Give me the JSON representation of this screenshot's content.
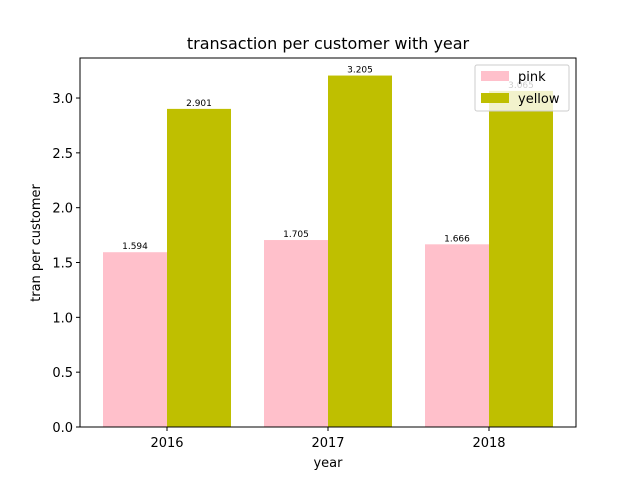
{
  "chart_data": {
    "type": "bar",
    "title": "transaction per customer with year",
    "xlabel": "year",
    "ylabel": "tran per customer",
    "categories": [
      "2016",
      "2017",
      "2018"
    ],
    "series": [
      {
        "name": "pink",
        "values": [
          1.594,
          1.705,
          1.666
        ],
        "color": "#ffc0cb",
        "labels": [
          "1.594",
          "1.705",
          "1.666"
        ]
      },
      {
        "name": "yellow",
        "values": [
          2.901,
          3.205,
          3.065
        ],
        "color": "#bfbf00",
        "labels": [
          "2.901",
          "3.205",
          "3.065"
        ]
      }
    ],
    "ylim": [
      0,
      3.365
    ],
    "yticks": [
      0.0,
      0.5,
      1.0,
      1.5,
      2.0,
      2.5,
      3.0
    ],
    "ytick_labels": [
      "0.0",
      "0.5",
      "1.0",
      "1.5",
      "2.0",
      "2.5",
      "3.0"
    ],
    "legend_position": "top-right",
    "grid": false
  }
}
